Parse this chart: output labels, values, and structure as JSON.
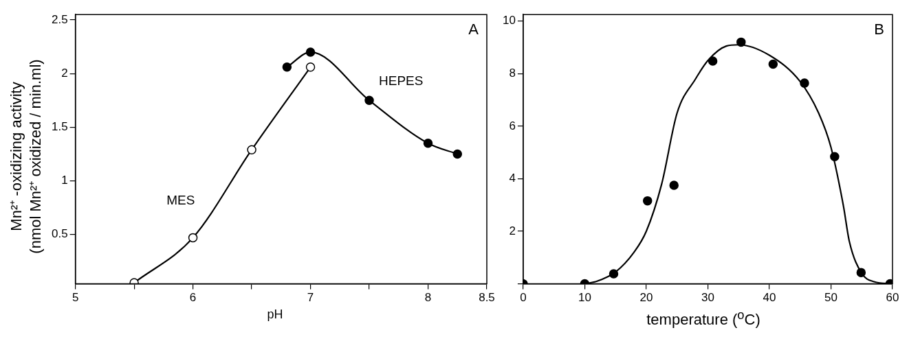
{
  "chart_data": [
    {
      "type": "line",
      "xlabel": "pH",
      "ylabel": "Mn²⁺ -oxidizing activity\n(nmol Mn²⁺ oxidized / min.ml)",
      "annotations": [
        "A"
      ],
      "xlim": [
        5,
        8.5
      ],
      "xticks": [
        5,
        {
          "value": 5.5,
          "label": null
        },
        6,
        {
          "value": 6.5,
          "label": null
        },
        7,
        {
          "value": 7.5,
          "label": null
        },
        8,
        8.5
      ],
      "ylim": [
        0.04,
        2.55
      ],
      "yticks": [
        0.5,
        1,
        1.5,
        2,
        2.5
      ],
      "grid": false,
      "legend": false,
      "marker": "circle",
      "line_style": "solid",
      "series": [
        {
          "name": "MES",
          "color": "#000000",
          "x": [
            5.5,
            6.0,
            6.5,
            7.0
          ],
          "values": [
            0.05,
            0.47,
            1.29,
            2.06
          ]
        },
        {
          "name": "HEPES",
          "color": "#000000",
          "x": [
            6.8,
            7.0,
            7.5,
            8.0,
            8.25
          ],
          "values": [
            2.06,
            2.2,
            1.75,
            1.35,
            1.25
          ]
        }
      ]
    },
    {
      "type": "scatter",
      "xlabel": "temperature ($^{o}$C)",
      "annotations": [
        "B"
      ],
      "xlim": [
        0,
        60
      ],
      "xticks": [
        0,
        10,
        20,
        30,
        40,
        50,
        60
      ],
      "ylim": [
        0,
        10.25
      ],
      "yticks": [
        {
          "value": 0,
          "label": null
        },
        2,
        4,
        6,
        8,
        10
      ],
      "grid": false,
      "legend": false,
      "marker": "circle",
      "series": [
        {
          "color": "#000000",
          "x": [
            0,
            10,
            14.7,
            20.2,
            24.5,
            30.8,
            35.4,
            40.6,
            45.7,
            50.6,
            54.9,
            59.6
          ],
          "values": [
            0,
            0,
            0.38,
            3.16,
            3.75,
            8.48,
            9.2,
            8.36,
            7.64,
            4.84,
            0.43,
            0
          ]
        },
        {
          "type": "line",
          "marker": "none",
          "color": "#000000",
          "x": [
            10,
            12,
            15,
            18,
            20,
            22.5,
            25,
            28,
            30,
            33,
            35,
            40,
            45,
            48,
            50,
            52,
            53,
            55,
            57,
            60
          ],
          "values": [
            0,
            0.1,
            0.45,
            1.2,
            2.0,
            3.8,
            6.5,
            7.8,
            8.5,
            9.05,
            9.1,
            8.7,
            7.7,
            6.5,
            5.2,
            3.0,
            1.6,
            0.4,
            0.08,
            0
          ]
        }
      ]
    }
  ]
}
